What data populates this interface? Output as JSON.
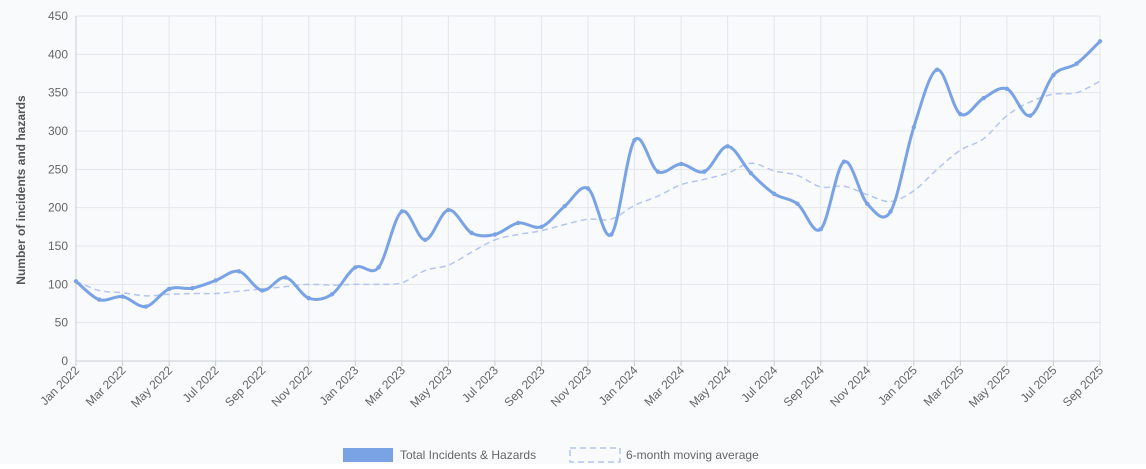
{
  "chart_data": {
    "type": "line",
    "ylabel": "Number of incidents and hazards",
    "ylim": [
      0,
      450
    ],
    "yticks": [
      0,
      50,
      100,
      150,
      200,
      250,
      300,
      350,
      400,
      450
    ],
    "grid": true,
    "legend_position": "bottom",
    "x": [
      "Jan 2022",
      "Feb 2022",
      "Mar 2022",
      "Apr 2022",
      "May 2022",
      "Jun 2022",
      "Jul 2022",
      "Aug 2022",
      "Sep 2022",
      "Oct 2022",
      "Nov 2022",
      "Dec 2022",
      "Jan 2023",
      "Feb 2023",
      "Mar 2023",
      "Apr 2023",
      "May 2023",
      "Jun 2023",
      "Jul 2023",
      "Aug 2023",
      "Sep 2023",
      "Oct 2023",
      "Nov 2023",
      "Dec 2023",
      "Jan 2024",
      "Feb 2024",
      "Mar 2024",
      "Apr 2024",
      "May 2024",
      "Jun 2024",
      "Jul 2024",
      "Aug 2024",
      "Sep 2024",
      "Oct 2024",
      "Nov 2024",
      "Dec 2024",
      "Jan 2025",
      "Feb 2025",
      "Mar 2025",
      "Apr 2025",
      "May 2025",
      "Jun 2025",
      "Jul 2025",
      "Aug 2025",
      "Sep 2025"
    ],
    "xtick_labels": [
      "Jan 2022",
      "Mar 2022",
      "May 2022",
      "Jul 2022",
      "Sep 2022",
      "Nov 2022",
      "Jan 2023",
      "Mar 2023",
      "May 2023",
      "Jul 2023",
      "Sep 2023",
      "Nov 2023",
      "Jan 2024",
      "Mar 2024",
      "May 2024",
      "Jul 2024",
      "Sep 2024",
      "Nov 2024",
      "Jan 2025",
      "Mar 2025",
      "May 2025",
      "Jul 2025",
      "Sep 2025"
    ],
    "series": [
      {
        "name": "Total Incidents & Hazards",
        "color": "#7aa3e5",
        "values": [
          104,
          80,
          84,
          71,
          94,
          95,
          105,
          117,
          92,
          109,
          82,
          87,
          122,
          122,
          195,
          158,
          197,
          167,
          165,
          180,
          175,
          202,
          225,
          165,
          288,
          247,
          257,
          247,
          280,
          245,
          218,
          205,
          172,
          260,
          205,
          195,
          305,
          380,
          322,
          343,
          355,
          320,
          373,
          388,
          417
        ]
      },
      {
        "name": "6-month moving average",
        "color": "#b4c6ef",
        "values": [
          104,
          92,
          89,
          85,
          87,
          88,
          88,
          91,
          94,
          97,
          100,
          99,
          100,
          100,
          102,
          118,
          125,
          142,
          158,
          165,
          170,
          178,
          185,
          185,
          203,
          215,
          230,
          237,
          245,
          258,
          248,
          242,
          227,
          228,
          217,
          208,
          222,
          250,
          275,
          290,
          320,
          338,
          348,
          350,
          365
        ]
      }
    ]
  }
}
